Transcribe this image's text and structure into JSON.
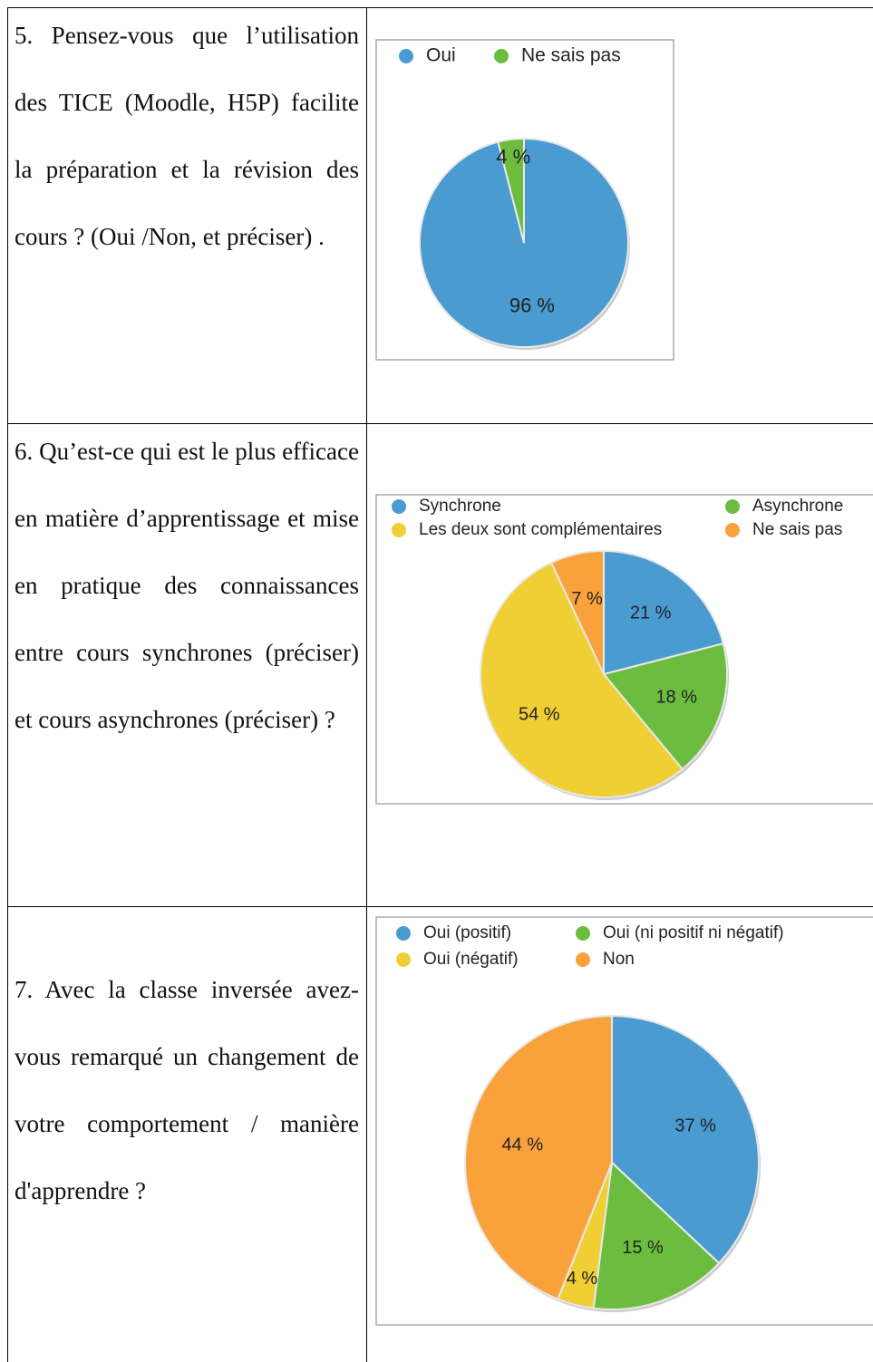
{
  "rows": [
    {
      "question": "5. Pensez-vous que l’utilisation des TICE (Moodle, H5P) facilite la préparation et la révision des cours ? (Oui /Non, et préciser) .",
      "chart": {
        "type": "pie",
        "categories": [
          "Oui",
          "Ne sais pas"
        ],
        "values": [
          96,
          4
        ],
        "value_labels": [
          "96 %",
          "4 %"
        ],
        "colors": [
          "#4a9bd0",
          "#6cbd3f"
        ]
      }
    },
    {
      "question": "6. Qu’est-ce qui est le plus efficace en matière d’apprentissage et mise en pratique des connaissances entre cours synchrones (préciser) et cours asynchrones (préciser) ?",
      "chart": {
        "type": "pie",
        "categories": [
          "Synchrone",
          "Asynchrone",
          "Les deux sont complémentaires",
          "Ne sais pas"
        ],
        "values": [
          21,
          18,
          54,
          7
        ],
        "value_labels": [
          "21 %",
          "18 %",
          "54 %",
          "7 %"
        ],
        "colors": [
          "#4a9bd0",
          "#6cbd3f",
          "#f0cf35",
          "#f9a23c"
        ]
      }
    },
    {
      "question": "7. Avec la classe inversée avez-vous remarqué un changement de votre comportement / manière d'apprendre ?",
      "chart": {
        "type": "pie",
        "categories": [
          "Oui (positif)",
          "Oui (ni positif ni négatif)",
          "Oui (négatif)",
          "Non"
        ],
        "values": [
          37,
          15,
          4,
          44
        ],
        "value_labels": [
          "37 %",
          "15 %",
          "4 %",
          "44 %"
        ],
        "colors": [
          "#4a9bd0",
          "#6cbd3f",
          "#f0cf35",
          "#f9a23c"
        ]
      }
    }
  ]
}
